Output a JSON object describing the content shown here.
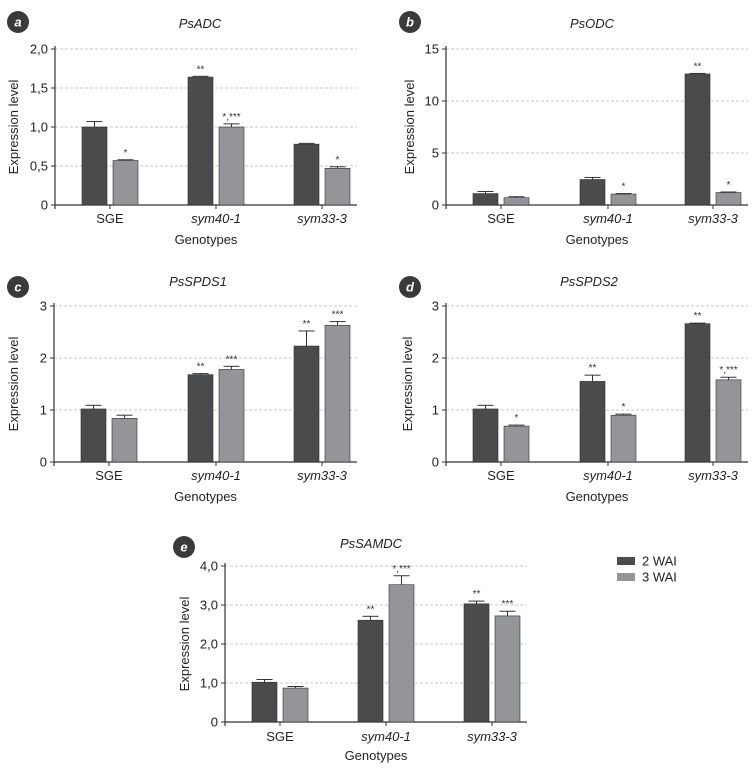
{
  "chart_data": [
    {
      "type": "bar",
      "panel": "a",
      "title": "PsADC",
      "xlabel": "Genotypes",
      "ylabel": "Expression level",
      "ylim": [
        0,
        2.0
      ],
      "yticks": [
        "0",
        "0,5",
        "1,0",
        "1,5",
        "2,0"
      ],
      "ytick_values": [
        0,
        0.5,
        1.0,
        1.5,
        2.0
      ],
      "grid": true,
      "categories": [
        "SGE",
        "sym40-1",
        "sym33-3"
      ],
      "category_italic": [
        false,
        true,
        true
      ],
      "series": [
        {
          "name": "2 WAI",
          "values": [
            1.0,
            1.64,
            0.78
          ],
          "errors": [
            0.07,
            0.01,
            0.01
          ],
          "sig": [
            "",
            "**",
            ""
          ]
        },
        {
          "name": "3 WAI",
          "values": [
            0.57,
            1.0,
            0.47
          ],
          "errors": [
            0.01,
            0.04,
            0.02
          ],
          "sig": [
            "*",
            "*,***",
            "*"
          ]
        }
      ]
    },
    {
      "type": "bar",
      "panel": "b",
      "title": "PsODC",
      "xlabel": "Genotypes",
      "ylabel": "Expression level",
      "ylim": [
        0,
        15
      ],
      "yticks": [
        "0",
        "5",
        "10",
        "15"
      ],
      "ytick_values": [
        0,
        5,
        10,
        15
      ],
      "grid": true,
      "categories": [
        "SGE",
        "sym40-1",
        "sym33-3"
      ],
      "category_italic": [
        false,
        true,
        true
      ],
      "series": [
        {
          "name": "2 WAI",
          "values": [
            1.1,
            2.45,
            12.6
          ],
          "errors": [
            0.2,
            0.2,
            0.05
          ],
          "sig": [
            "",
            "",
            "**"
          ]
        },
        {
          "name": "3 WAI",
          "values": [
            0.7,
            1.05,
            1.2
          ],
          "errors": [
            0.1,
            0.05,
            0.05
          ],
          "sig": [
            "",
            "*",
            "*"
          ]
        }
      ]
    },
    {
      "type": "bar",
      "panel": "c",
      "title": "PsSPDS1",
      "xlabel": "Genotypes",
      "ylabel": "Expression level",
      "ylim": [
        0,
        3
      ],
      "yticks": [
        "0",
        "1",
        "2",
        "3"
      ],
      "ytick_values": [
        0,
        1,
        2,
        3
      ],
      "grid": true,
      "categories": [
        "SGE",
        "sym40-1",
        "sym33-3"
      ],
      "category_italic": [
        false,
        true,
        true
      ],
      "series": [
        {
          "name": "2 WAI",
          "values": [
            1.02,
            1.68,
            2.23
          ],
          "errors": [
            0.07,
            0.02,
            0.29
          ],
          "sig": [
            "",
            "**",
            "**"
          ]
        },
        {
          "name": "3 WAI",
          "values": [
            0.84,
            1.78,
            2.63
          ],
          "errors": [
            0.06,
            0.06,
            0.07
          ],
          "sig": [
            "",
            "***",
            "***"
          ]
        }
      ]
    },
    {
      "type": "bar",
      "panel": "d",
      "title": "PsSPDS2",
      "xlabel": "Genotypes",
      "ylabel": "Expression level",
      "ylim": [
        0,
        3
      ],
      "yticks": [
        "0",
        "1",
        "2",
        "3"
      ],
      "ytick_values": [
        0,
        1,
        2,
        3
      ],
      "grid": true,
      "categories": [
        "SGE",
        "sym40-1",
        "sym33-3"
      ],
      "category_italic": [
        false,
        true,
        true
      ],
      "series": [
        {
          "name": "2 WAI",
          "values": [
            1.02,
            1.55,
            2.66
          ],
          "errors": [
            0.07,
            0.12,
            0.01
          ],
          "sig": [
            "",
            "**",
            "**"
          ]
        },
        {
          "name": "3 WAI",
          "values": [
            0.69,
            0.9,
            1.58
          ],
          "errors": [
            0.02,
            0.02,
            0.05
          ],
          "sig": [
            "*",
            "*",
            "*,***"
          ]
        }
      ]
    },
    {
      "type": "bar",
      "panel": "e",
      "title": "PsSAMDC",
      "xlabel": "Genotypes",
      "ylabel": "Expression level",
      "ylim": [
        0,
        4.0
      ],
      "yticks": [
        "0",
        "1,0",
        "2,0",
        "3,0",
        "4,0"
      ],
      "ytick_values": [
        0,
        1,
        2,
        3,
        4
      ],
      "grid": true,
      "categories": [
        "SGE",
        "sym40-1",
        "sym33-3"
      ],
      "category_italic": [
        false,
        true,
        true
      ],
      "series": [
        {
          "name": "2 WAI",
          "values": [
            1.02,
            2.61,
            3.03
          ],
          "errors": [
            0.07,
            0.1,
            0.07
          ],
          "sig": [
            "",
            "**",
            "**"
          ]
        },
        {
          "name": "3 WAI",
          "values": [
            0.87,
            3.52,
            2.72
          ],
          "errors": [
            0.04,
            0.23,
            0.12
          ],
          "sig": [
            "",
            "*,***",
            "***"
          ]
        }
      ]
    }
  ],
  "legend": {
    "position": "right of panel e",
    "entries": [
      {
        "label": "2 WAI",
        "color": "#4a4b4d"
      },
      {
        "label": "3 WAI",
        "color": "#939598"
      }
    ]
  },
  "colors": {
    "series_dark": "#4a4b4d",
    "series_light": "#939598",
    "badge": "#3a3a3c",
    "grid": "#c8c8c8",
    "axis": "#333333"
  }
}
